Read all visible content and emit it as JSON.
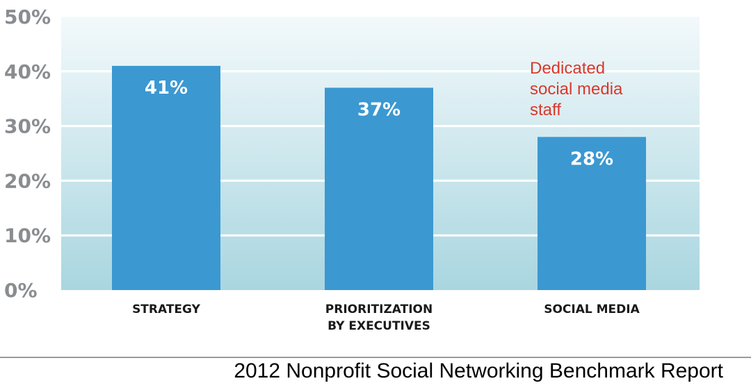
{
  "chart_data": {
    "type": "bar",
    "categories": [
      "STRATEGY",
      "PRIORITIZATION\nBY EXECUTIVES",
      "SOCIAL MEDIA"
    ],
    "values": [
      41,
      37,
      28
    ],
    "data_labels": [
      "41%",
      "37%",
      "28%"
    ],
    "ylim": [
      0,
      50
    ],
    "yticks": [
      0,
      10,
      20,
      30,
      40,
      50
    ],
    "ytick_labels": [
      "0%",
      "10%",
      "20%",
      "30%",
      "40%",
      "50%"
    ],
    "grid": true,
    "annotation": "Dedicated\nsocial media\nstaff",
    "colors": {
      "bar": "#3b98d1",
      "annotation": "#d9382c",
      "gridline": "#ffffff",
      "background_top": "#f3f9fb",
      "background_bottom": "#a9d6e0",
      "tick_label": "#8a8d90"
    }
  },
  "footer": {
    "source": "2012 Nonprofit Social Networking Benchmark Report"
  }
}
